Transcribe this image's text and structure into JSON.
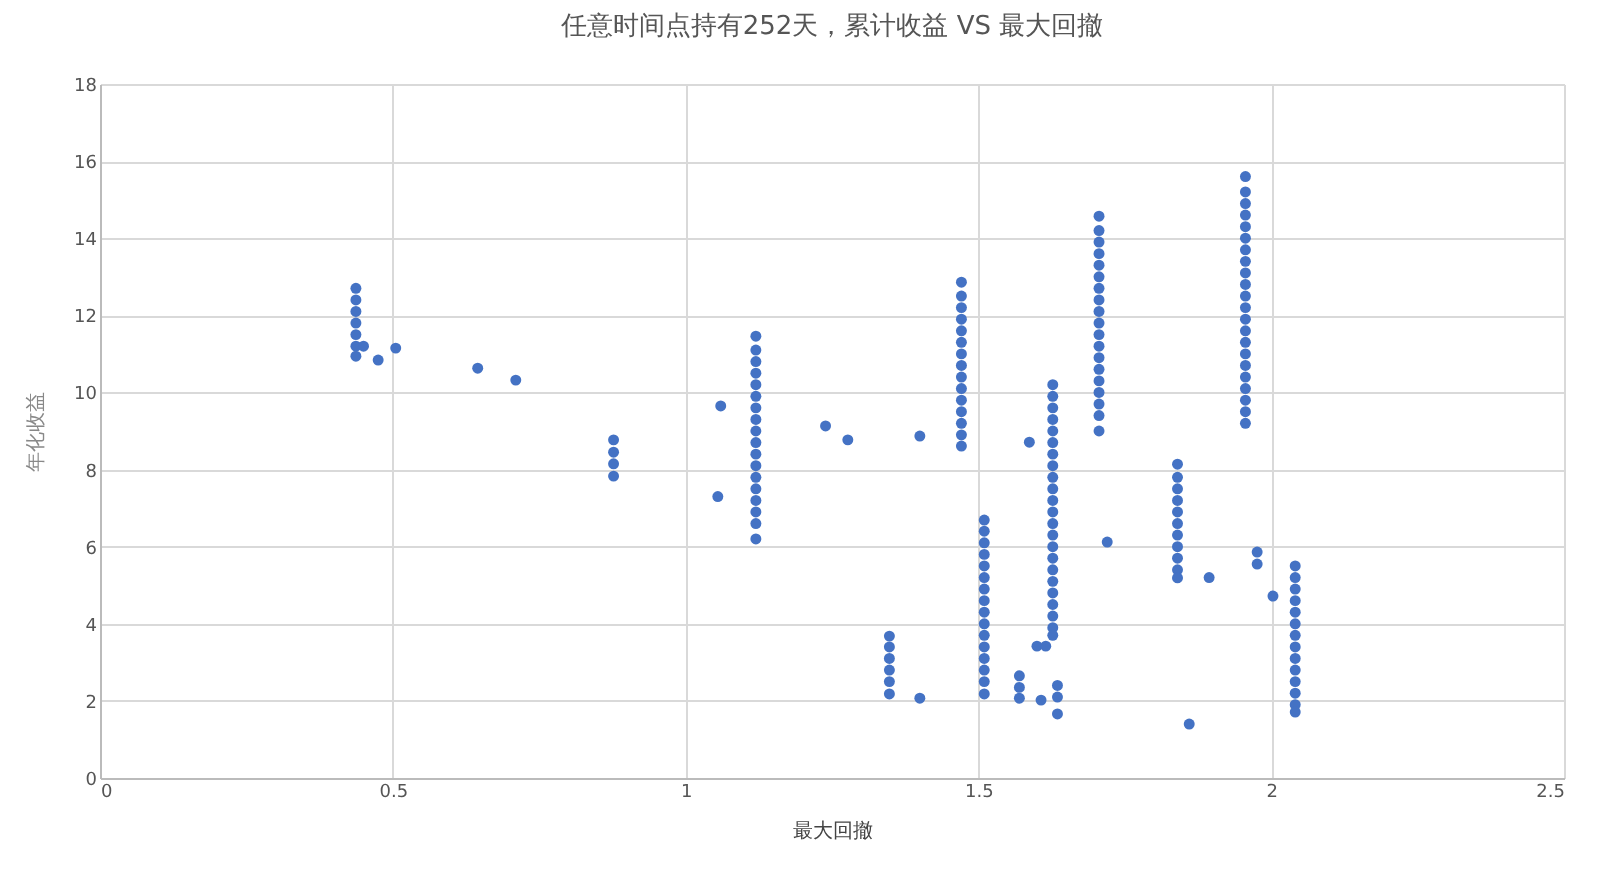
{
  "chart_data": {
    "type": "scatter",
    "title": "任意时间点持有252天，累计收益 VS 最大回撤",
    "xlabel": "最大回撤",
    "ylabel": "年化收益",
    "xlim": [
      0,
      2.5
    ],
    "xticks": [
      0,
      0.5,
      1,
      1.5,
      2,
      2.5
    ],
    "ylim": [
      0,
      18
    ],
    "yticks": [
      0,
      2,
      4,
      6,
      8,
      10,
      12,
      14,
      16,
      18
    ],
    "grid": true,
    "marker": "circle",
    "series": [
      {
        "color": "#4472c4",
        "x": [
          0.437,
          0.437,
          0.437,
          0.437,
          0.437,
          0.437,
          0.437,
          0.877,
          0.877,
          0.877,
          0.877,
          1.12,
          1.12,
          1.12,
          1.12,
          1.12,
          1.12,
          1.12,
          1.12,
          1.12,
          1.12,
          1.12,
          1.12,
          1.12,
          1.12,
          1.12,
          1.12,
          1.12,
          1.12,
          1.348,
          1.348,
          1.348,
          1.348,
          1.348,
          1.348,
          1.471,
          1.471,
          1.471,
          1.471,
          1.471,
          1.471,
          1.471,
          1.471,
          1.471,
          1.471,
          1.471,
          1.471,
          1.471,
          1.471,
          1.471,
          1.51,
          1.51,
          1.51,
          1.51,
          1.51,
          1.51,
          1.51,
          1.51,
          1.51,
          1.51,
          1.51,
          1.51,
          1.51,
          1.51,
          1.51,
          1.51,
          1.57,
          1.57,
          1.57,
          1.627,
          1.627,
          1.627,
          1.627,
          1.627,
          1.627,
          1.627,
          1.627,
          1.627,
          1.627,
          1.627,
          1.627,
          1.627,
          1.627,
          1.627,
          1.627,
          1.627,
          1.627,
          1.627,
          1.627,
          1.627,
          1.627,
          1.627,
          1.635,
          1.635,
          1.635,
          1.706,
          1.706,
          1.706,
          1.706,
          1.706,
          1.706,
          1.706,
          1.706,
          1.706,
          1.706,
          1.706,
          1.706,
          1.706,
          1.706,
          1.706,
          1.706,
          1.706,
          1.706,
          1.706,
          1.84,
          1.84,
          1.84,
          1.84,
          1.84,
          1.84,
          1.84,
          1.84,
          1.84,
          1.84,
          1.84,
          1.956,
          1.956,
          1.956,
          1.956,
          1.956,
          1.956,
          1.956,
          1.956,
          1.956,
          1.956,
          1.956,
          1.956,
          1.956,
          1.956,
          1.956,
          1.956,
          1.956,
          1.956,
          1.956,
          1.956,
          1.956,
          1.956,
          2.041,
          2.041,
          2.041,
          2.041,
          2.041,
          2.041,
          2.041,
          2.041,
          2.041,
          2.041,
          2.041,
          2.041,
          2.041,
          2.041,
          0.45,
          0.475,
          0.505,
          0.645,
          0.71,
          1.055,
          1.06,
          1.239,
          1.277,
          1.4,
          1.587,
          1.4,
          1.607,
          1.6,
          1.615,
          1.72,
          1.86,
          1.894,
          1.976,
          1.976,
          2.003
        ],
        "values": [
          12.7,
          12.4,
          12.1,
          11.8,
          11.5,
          11.2,
          10.94,
          8.77,
          8.45,
          8.15,
          7.83,
          11.46,
          11.1,
          10.8,
          10.5,
          10.2,
          9.9,
          9.6,
          9.3,
          9.0,
          8.7,
          8.4,
          8.1,
          7.8,
          7.5,
          7.2,
          6.9,
          6.6,
          6.2,
          3.68,
          3.4,
          3.1,
          2.8,
          2.5,
          2.18,
          12.86,
          12.5,
          12.2,
          11.9,
          11.6,
          11.3,
          11.0,
          10.7,
          10.4,
          10.1,
          9.8,
          9.5,
          9.2,
          8.9,
          8.61,
          6.69,
          6.4,
          6.1,
          5.8,
          5.5,
          5.2,
          4.9,
          4.6,
          4.3,
          4.0,
          3.7,
          3.4,
          3.1,
          2.8,
          2.5,
          2.18,
          2.65,
          2.35,
          2.07,
          10.2,
          9.9,
          9.6,
          9.3,
          9.0,
          8.7,
          8.4,
          8.1,
          7.8,
          7.5,
          7.2,
          6.9,
          6.6,
          6.3,
          6.0,
          5.7,
          5.4,
          5.1,
          4.8,
          4.5,
          4.2,
          3.9,
          3.7,
          2.4,
          2.1,
          1.66,
          14.57,
          14.2,
          13.9,
          13.6,
          13.3,
          13.0,
          12.7,
          12.4,
          12.1,
          11.8,
          11.5,
          11.2,
          10.9,
          10.6,
          10.3,
          10.0,
          9.7,
          9.4,
          9.0,
          8.14,
          7.8,
          7.5,
          7.2,
          6.9,
          6.6,
          6.3,
          6.0,
          5.7,
          5.4,
          5.19,
          15.6,
          15.2,
          14.9,
          14.6,
          14.3,
          14.0,
          13.7,
          13.4,
          13.1,
          12.8,
          12.5,
          12.2,
          11.9,
          11.6,
          11.3,
          11.0,
          10.7,
          10.4,
          10.1,
          9.8,
          9.5,
          9.2,
          5.5,
          5.2,
          4.9,
          4.6,
          4.3,
          4.0,
          3.7,
          3.4,
          3.1,
          2.8,
          2.5,
          2.2,
          1.9,
          1.71,
          11.2,
          10.84,
          11.15,
          10.63,
          10.32,
          7.3,
          9.65,
          9.13,
          8.77,
          8.87,
          8.71,
          2.07,
          2.02,
          3.42,
          3.42,
          6.12,
          1.4,
          5.2,
          5.86,
          5.55,
          4.72
        ]
      }
    ]
  }
}
